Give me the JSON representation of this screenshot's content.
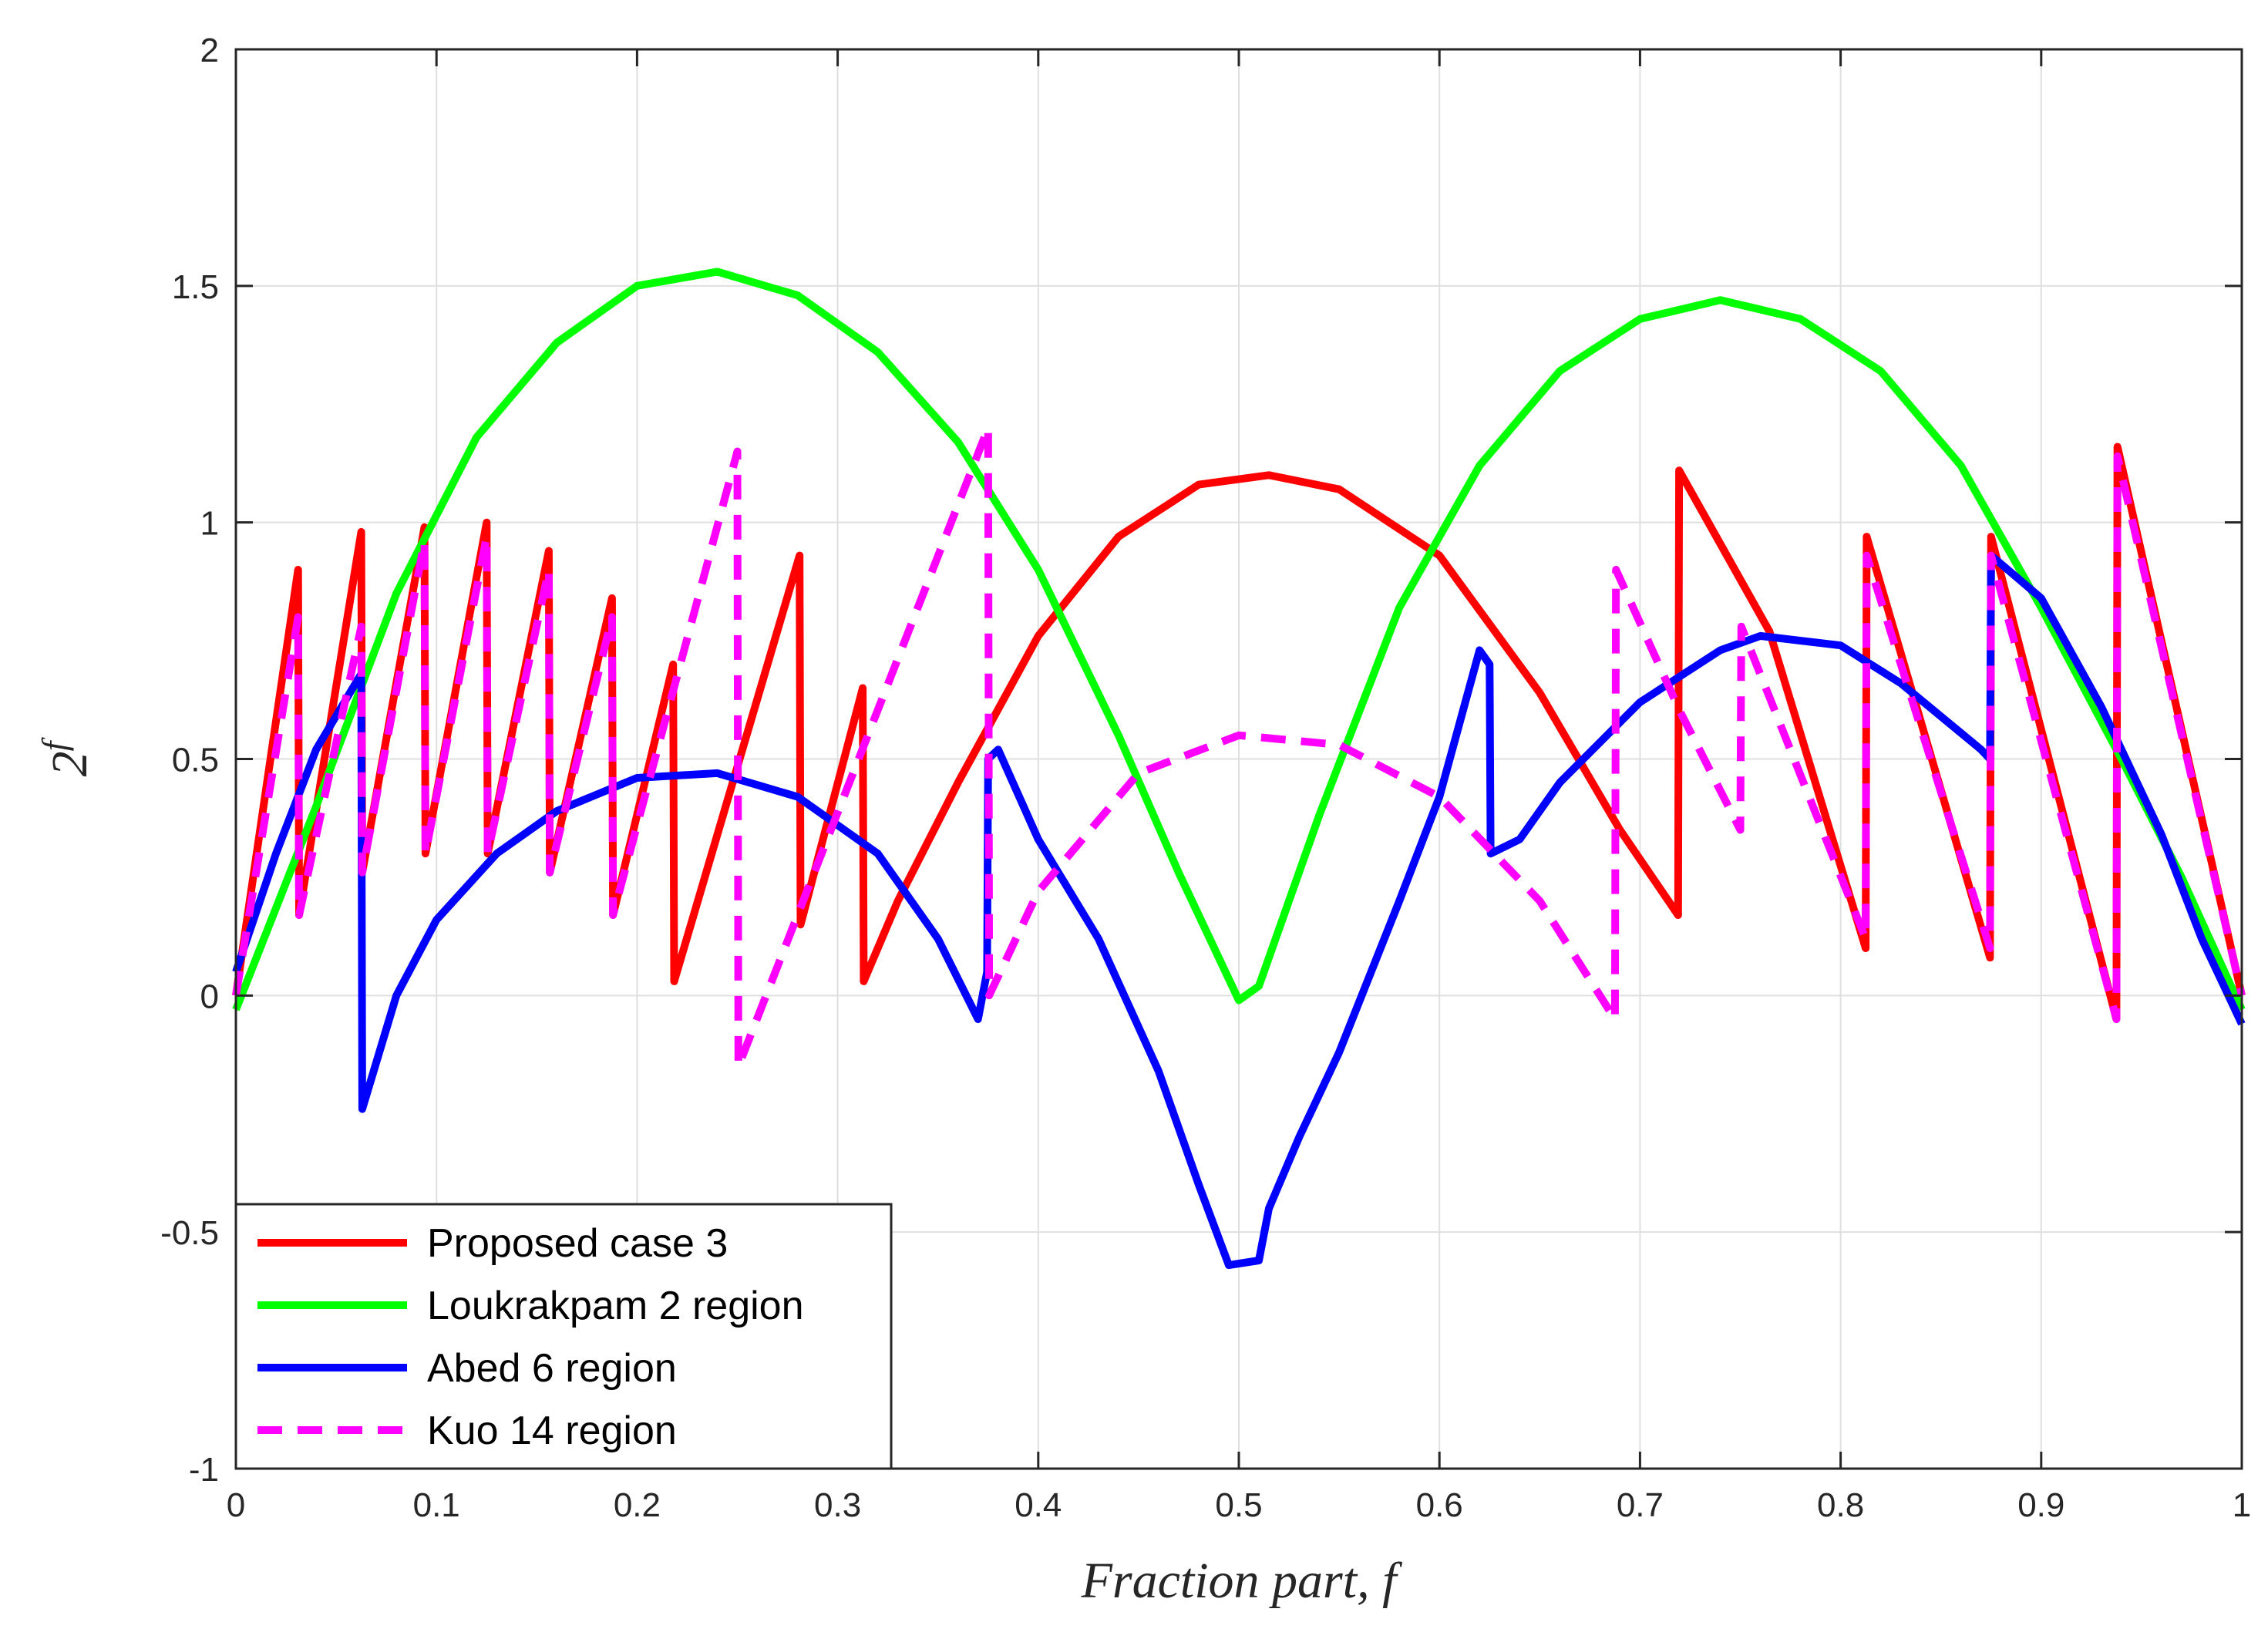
{
  "chart_data": {
    "type": "line",
    "title": "",
    "xlabel": "Fraction part, f",
    "ylabel_base": "2",
    "ylabel_sup": "f",
    "xlim": [
      0,
      1
    ],
    "ylim": [
      -1,
      2
    ],
    "grid": true,
    "legend_position": "bottom-left",
    "xticks": [
      0,
      0.1,
      0.2,
      0.3,
      0.4,
      0.5,
      0.6,
      0.7,
      0.8,
      0.9,
      1
    ],
    "xtick_labels": [
      "0",
      "0.1",
      "0.2",
      "0.3",
      "0.4",
      "0.5",
      "0.6",
      "0.7",
      "0.8",
      "0.9",
      "1"
    ],
    "yticks": [
      -1,
      -0.5,
      0,
      0.5,
      1,
      1.5,
      2
    ],
    "ytick_labels": [
      "-1",
      "-0.5",
      "0",
      "0.5",
      "1",
      "1.5",
      "2"
    ],
    "series": [
      {
        "name": "Proposed case 3",
        "color": "#ff0000",
        "style": "solid",
        "points": [
          [
            0,
            0
          ],
          [
            0.031,
            0.9
          ],
          [
            0.0315,
            0.17
          ],
          [
            0.0625,
            0.98
          ],
          [
            0.063,
            0.26
          ],
          [
            0.094,
            0.99
          ],
          [
            0.0945,
            0.3
          ],
          [
            0.125,
            1.0
          ],
          [
            0.1255,
            0.3
          ],
          [
            0.156,
            0.94
          ],
          [
            0.1565,
            0.26
          ],
          [
            0.1875,
            0.84
          ],
          [
            0.188,
            0.17
          ],
          [
            0.218,
            0.7
          ],
          [
            0.2185,
            0.03
          ],
          [
            0.281,
            0.93
          ],
          [
            0.2815,
            0.15
          ],
          [
            0.3125,
            0.65
          ],
          [
            0.313,
            0.03
          ],
          [
            0.33,
            0.2
          ],
          [
            0.36,
            0.45
          ],
          [
            0.4,
            0.76
          ],
          [
            0.44,
            0.97
          ],
          [
            0.48,
            1.08
          ],
          [
            0.515,
            1.1
          ],
          [
            0.55,
            1.07
          ],
          [
            0.6,
            0.93
          ],
          [
            0.65,
            0.64
          ],
          [
            0.69,
            0.35
          ],
          [
            0.719,
            0.17
          ],
          [
            0.7195,
            1.11
          ],
          [
            0.7645,
            0.77
          ],
          [
            0.8125,
            0.1
          ],
          [
            0.813,
            0.97
          ],
          [
            0.8745,
            0.08
          ],
          [
            0.875,
            0.97
          ],
          [
            0.9375,
            -0.05
          ],
          [
            0.938,
            1.16
          ],
          [
            1,
            0
          ]
        ]
      },
      {
        "name": "Loukrakpam 2 region",
        "color": "#00ff00",
        "style": "solid",
        "points": [
          [
            0,
            -0.03
          ],
          [
            0.04,
            0.4
          ],
          [
            0.08,
            0.85
          ],
          [
            0.12,
            1.18
          ],
          [
            0.16,
            1.38
          ],
          [
            0.2,
            1.5
          ],
          [
            0.24,
            1.53
          ],
          [
            0.28,
            1.48
          ],
          [
            0.32,
            1.36
          ],
          [
            0.36,
            1.17
          ],
          [
            0.4,
            0.9
          ],
          [
            0.44,
            0.55
          ],
          [
            0.47,
            0.26
          ],
          [
            0.5,
            -0.01
          ],
          [
            0.51,
            0.02
          ],
          [
            0.54,
            0.38
          ],
          [
            0.58,
            0.82
          ],
          [
            0.62,
            1.12
          ],
          [
            0.66,
            1.32
          ],
          [
            0.7,
            1.43
          ],
          [
            0.74,
            1.47
          ],
          [
            0.78,
            1.43
          ],
          [
            0.82,
            1.32
          ],
          [
            0.86,
            1.12
          ],
          [
            0.9,
            0.82
          ],
          [
            0.94,
            0.5
          ],
          [
            0.97,
            0.25
          ],
          [
            1,
            -0.03
          ]
        ]
      },
      {
        "name": "Abed 6 region",
        "color": "#0000ff",
        "style": "solid",
        "points": [
          [
            0,
            0.05
          ],
          [
            0.02,
            0.3
          ],
          [
            0.04,
            0.52
          ],
          [
            0.0625,
            0.68
          ],
          [
            0.063,
            -0.24
          ],
          [
            0.08,
            0.0
          ],
          [
            0.1,
            0.16
          ],
          [
            0.13,
            0.3
          ],
          [
            0.16,
            0.39
          ],
          [
            0.2,
            0.46
          ],
          [
            0.24,
            0.47
          ],
          [
            0.28,
            0.42
          ],
          [
            0.32,
            0.3
          ],
          [
            0.35,
            0.12
          ],
          [
            0.37,
            -0.05
          ],
          [
            0.3745,
            0.05
          ],
          [
            0.375,
            0.5
          ],
          [
            0.38,
            0.52
          ],
          [
            0.4,
            0.33
          ],
          [
            0.43,
            0.12
          ],
          [
            0.46,
            -0.16
          ],
          [
            0.48,
            -0.4
          ],
          [
            0.495,
            -0.57
          ],
          [
            0.51,
            -0.56
          ],
          [
            0.515,
            -0.45
          ],
          [
            0.53,
            -0.3
          ],
          [
            0.55,
            -0.12
          ],
          [
            0.58,
            0.2
          ],
          [
            0.6,
            0.42
          ],
          [
            0.62,
            0.73
          ],
          [
            0.625,
            0.7
          ],
          [
            0.6255,
            0.3
          ],
          [
            0.64,
            0.33
          ],
          [
            0.66,
            0.45
          ],
          [
            0.7,
            0.62
          ],
          [
            0.74,
            0.73
          ],
          [
            0.76,
            0.76
          ],
          [
            0.8,
            0.74
          ],
          [
            0.83,
            0.66
          ],
          [
            0.87,
            0.52
          ],
          [
            0.8745,
            0.5
          ],
          [
            0.875,
            0.93
          ],
          [
            0.9,
            0.84
          ],
          [
            0.93,
            0.61
          ],
          [
            0.96,
            0.34
          ],
          [
            0.98,
            0.12
          ],
          [
            1,
            -0.06
          ]
        ]
      },
      {
        "name": "Kuo 14 region",
        "color": "#ff00ff",
        "style": "dashed",
        "points": [
          [
            0,
            0
          ],
          [
            0.031,
            0.8
          ],
          [
            0.0315,
            0.17
          ],
          [
            0.0625,
            0.78
          ],
          [
            0.063,
            0.26
          ],
          [
            0.094,
            0.96
          ],
          [
            0.0945,
            0.3
          ],
          [
            0.125,
            0.97
          ],
          [
            0.1255,
            0.3
          ],
          [
            0.156,
            0.9
          ],
          [
            0.1565,
            0.26
          ],
          [
            0.1875,
            0.8
          ],
          [
            0.188,
            0.17
          ],
          [
            0.25,
            1.15
          ],
          [
            0.2505,
            -0.15
          ],
          [
            0.375,
            1.2
          ],
          [
            0.3755,
            0.0
          ],
          [
            0.4,
            0.22
          ],
          [
            0.45,
            0.47
          ],
          [
            0.5,
            0.55
          ],
          [
            0.55,
            0.53
          ],
          [
            0.6,
            0.42
          ],
          [
            0.65,
            0.2
          ],
          [
            0.6875,
            -0.05
          ],
          [
            0.688,
            0.9
          ],
          [
            0.72,
            0.6
          ],
          [
            0.75,
            0.35
          ],
          [
            0.7505,
            0.78
          ],
          [
            0.8125,
            0.12
          ],
          [
            0.813,
            0.93
          ],
          [
            0.8745,
            0.1
          ],
          [
            0.875,
            0.93
          ],
          [
            0.9375,
            -0.05
          ],
          [
            0.938,
            1.14
          ],
          [
            1,
            0
          ]
        ]
      }
    ]
  }
}
